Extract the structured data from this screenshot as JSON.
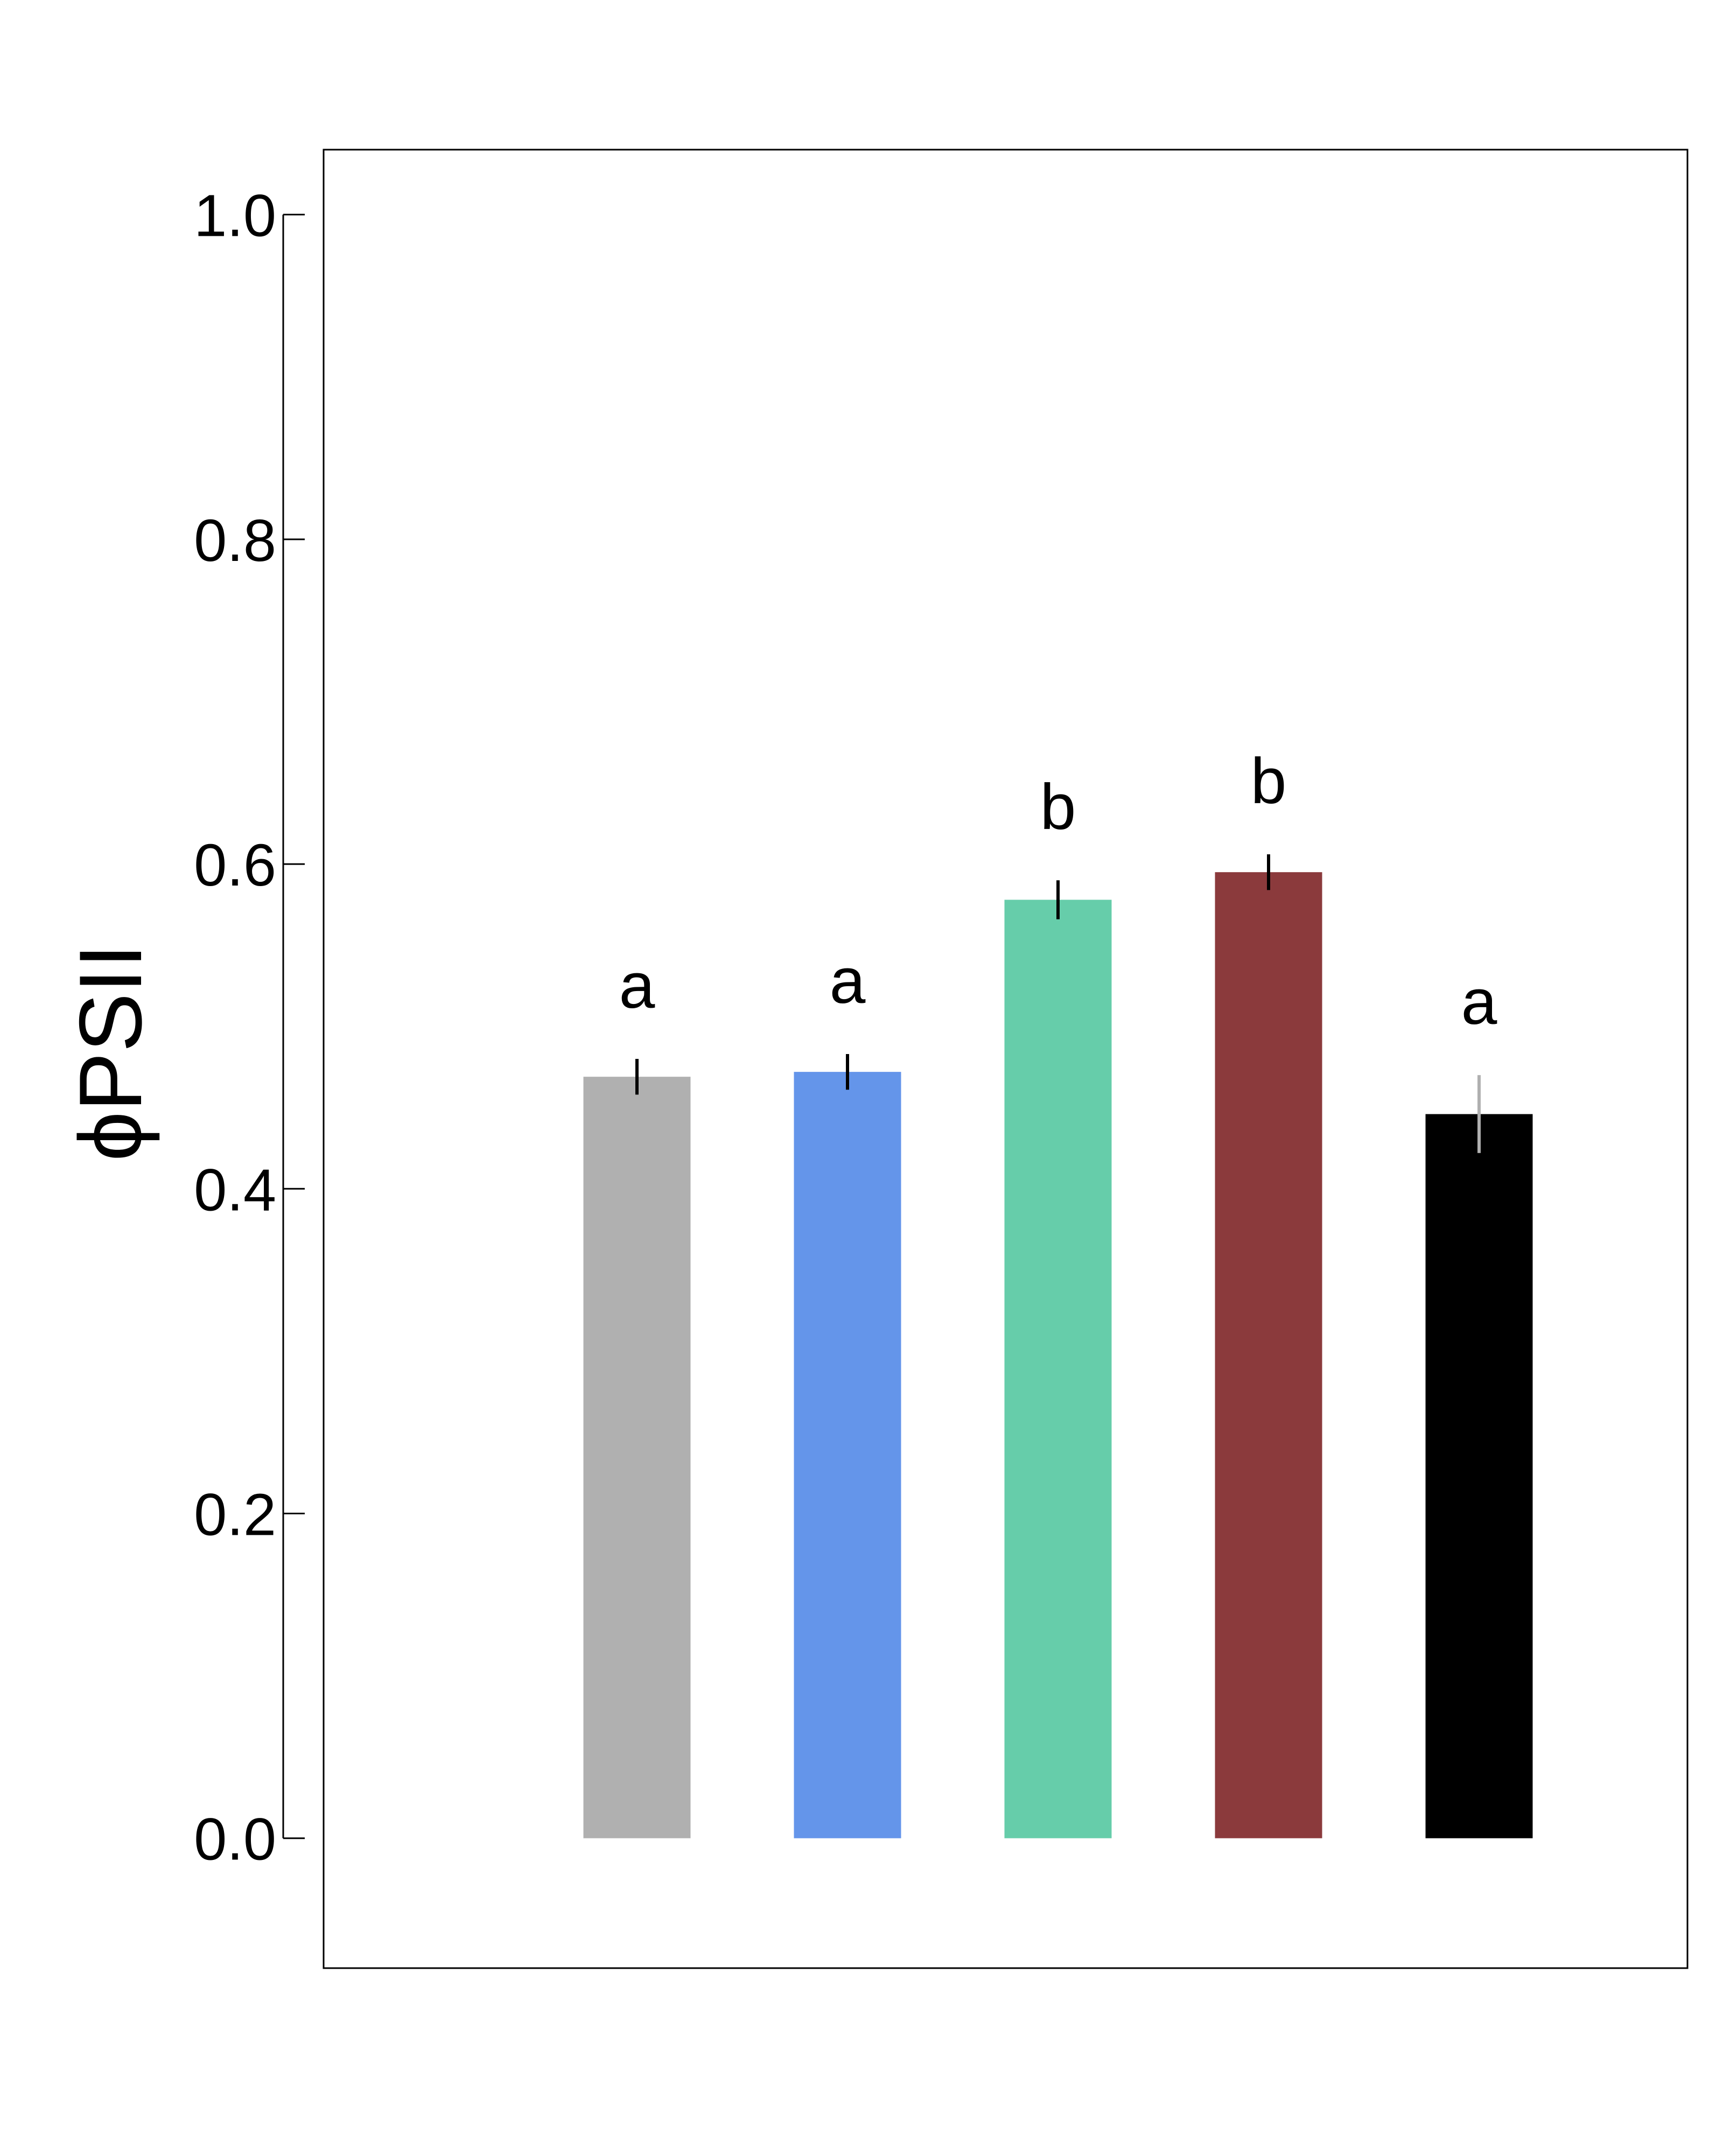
{
  "chart_data": {
    "type": "bar",
    "ylabel": "ϕPSII",
    "ylim": [
      -0.08,
      1.04
    ],
    "yticks": [
      "0.0",
      "0.2",
      "0.4",
      "0.6",
      "0.8",
      "1.0"
    ],
    "ytick_values": [
      0.0,
      0.2,
      0.4,
      0.6,
      0.8,
      1.0
    ],
    "grid": false,
    "bars": [
      {
        "value": 0.469,
        "error": 0.011,
        "letter": "a",
        "color": "#b0b0b0",
        "error_color": "#000000"
      },
      {
        "value": 0.472,
        "error": 0.011,
        "letter": "a",
        "color": "#6495ea",
        "error_color": "#000000"
      },
      {
        "value": 0.578,
        "error": 0.012,
        "letter": "b",
        "color": "#66cdaa",
        "error_color": "#000000"
      },
      {
        "value": 0.595,
        "error": 0.011,
        "letter": "b",
        "color": "#8b3a3c",
        "error_color": "#000000"
      },
      {
        "value": 0.446,
        "error": 0.024,
        "letter": "a",
        "color": "#000000",
        "error_color": "#b0b0b0"
      }
    ]
  }
}
